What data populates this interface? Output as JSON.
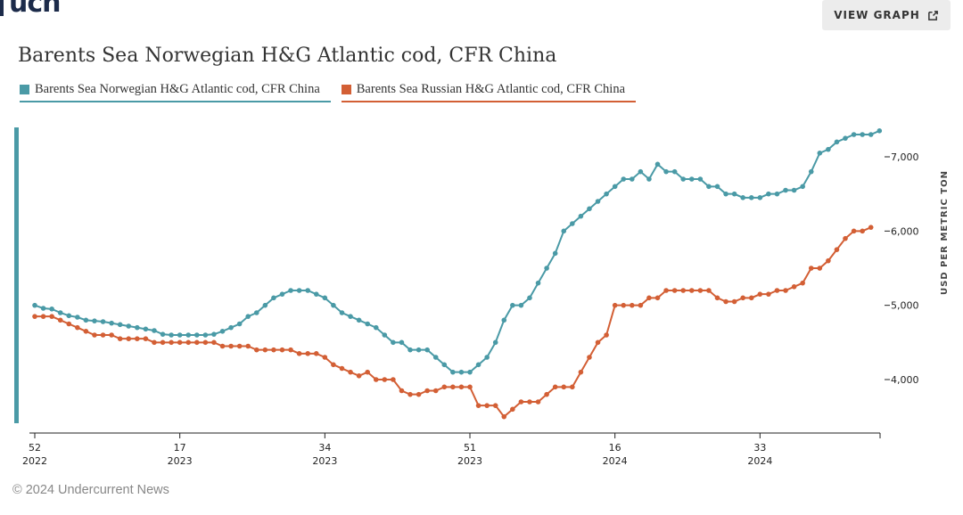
{
  "logo": {
    "text": "ucn"
  },
  "header": {
    "view_graph_label": "VIEW GRAPH"
  },
  "title": "Barents Sea Norwegian H&G Atlantic cod, CFR China",
  "legend": [
    {
      "label": "Barents Sea Norwegian H&G Atlantic cod, CFR China",
      "color": "#4a9aa6"
    },
    {
      "label": "Barents Sea Russian H&G Atlantic cod, CFR China",
      "color": "#d35f35"
    }
  ],
  "footer": {
    "copyright": "© 2024 Undercurrent News"
  },
  "chart_data": {
    "type": "line",
    "title": "Barents Sea Norwegian H&G Atlantic cod, CFR China",
    "ylabel": "USD PER METRIC TON",
    "xlabel": "",
    "ylim": [
      3300,
      7400
    ],
    "y_ticks": [
      4000,
      5000,
      6000,
      7000
    ],
    "y_tick_labels": [
      "4,000",
      "5,000",
      "6,000",
      "7,000"
    ],
    "x_range_weeks": [
      0,
      95
    ],
    "x_ticks": [
      {
        "week_index": 0,
        "week": "52",
        "year": "2022"
      },
      {
        "week_index": 17,
        "week": "17",
        "year": "2023"
      },
      {
        "week_index": 34,
        "week": "34",
        "year": "2023"
      },
      {
        "week_index": 51,
        "week": "51",
        "year": "2023"
      },
      {
        "week_index": 68,
        "week": "16",
        "year": "2024"
      },
      {
        "week_index": 85,
        "week": "33",
        "year": "2024"
      }
    ],
    "series": [
      {
        "name": "Barents Sea Norwegian H&G Atlantic cod, CFR China",
        "color": "#4a9aa6",
        "points": [
          [
            0,
            5000
          ],
          [
            1,
            4960
          ],
          [
            2,
            4950
          ],
          [
            3,
            4900
          ],
          [
            4,
            4860
          ],
          [
            5,
            4840
          ],
          [
            6,
            4800
          ],
          [
            7,
            4790
          ],
          [
            8,
            4780
          ],
          [
            9,
            4760
          ],
          [
            10,
            4740
          ],
          [
            11,
            4720
          ],
          [
            12,
            4700
          ],
          [
            13,
            4680
          ],
          [
            14,
            4660
          ],
          [
            15,
            4610
          ],
          [
            16,
            4600
          ],
          [
            17,
            4600
          ],
          [
            18,
            4600
          ],
          [
            19,
            4600
          ],
          [
            20,
            4600
          ],
          [
            21,
            4610
          ],
          [
            22,
            4650
          ],
          [
            23,
            4700
          ],
          [
            24,
            4750
          ],
          [
            25,
            4850
          ],
          [
            26,
            4900
          ],
          [
            27,
            5000
          ],
          [
            28,
            5100
          ],
          [
            29,
            5150
          ],
          [
            30,
            5200
          ],
          [
            31,
            5200
          ],
          [
            32,
            5200
          ],
          [
            33,
            5150
          ],
          [
            34,
            5100
          ],
          [
            35,
            5000
          ],
          [
            36,
            4900
          ],
          [
            37,
            4850
          ],
          [
            38,
            4800
          ],
          [
            39,
            4750
          ],
          [
            40,
            4700
          ],
          [
            41,
            4600
          ],
          [
            42,
            4500
          ],
          [
            43,
            4500
          ],
          [
            44,
            4400
          ],
          [
            45,
            4400
          ],
          [
            46,
            4400
          ],
          [
            47,
            4300
          ],
          [
            48,
            4200
          ],
          [
            49,
            4100
          ],
          [
            50,
            4100
          ],
          [
            51,
            4100
          ],
          [
            52,
            4200
          ],
          [
            53,
            4300
          ],
          [
            54,
            4500
          ],
          [
            55,
            4800
          ],
          [
            56,
            5000
          ],
          [
            57,
            5000
          ],
          [
            58,
            5100
          ],
          [
            59,
            5300
          ],
          [
            60,
            5500
          ],
          [
            61,
            5700
          ],
          [
            62,
            6000
          ],
          [
            63,
            6100
          ],
          [
            64,
            6200
          ],
          [
            65,
            6300
          ],
          [
            66,
            6400
          ],
          [
            67,
            6500
          ],
          [
            68,
            6600
          ],
          [
            69,
            6700
          ],
          [
            70,
            6700
          ],
          [
            71,
            6800
          ],
          [
            72,
            6700
          ],
          [
            73,
            6900
          ],
          [
            74,
            6800
          ],
          [
            75,
            6800
          ],
          [
            76,
            6700
          ],
          [
            77,
            6700
          ],
          [
            78,
            6700
          ],
          [
            79,
            6600
          ],
          [
            80,
            6600
          ],
          [
            81,
            6500
          ],
          [
            82,
            6500
          ],
          [
            83,
            6450
          ],
          [
            84,
            6450
          ],
          [
            85,
            6450
          ],
          [
            86,
            6500
          ],
          [
            87,
            6500
          ],
          [
            88,
            6550
          ],
          [
            89,
            6550
          ],
          [
            90,
            6600
          ],
          [
            91,
            6800
          ],
          [
            92,
            7050
          ],
          [
            93,
            7100
          ],
          [
            94,
            7200
          ],
          [
            95,
            7250
          ],
          [
            96,
            7300
          ],
          [
            97,
            7300
          ],
          [
            98,
            7300
          ],
          [
            99,
            7350
          ]
        ]
      },
      {
        "name": "Barents Sea Russian H&G Atlantic cod, CFR China",
        "color": "#d35f35",
        "points": [
          [
            0,
            4850
          ],
          [
            1,
            4850
          ],
          [
            2,
            4850
          ],
          [
            3,
            4800
          ],
          [
            4,
            4750
          ],
          [
            5,
            4700
          ],
          [
            6,
            4650
          ],
          [
            7,
            4600
          ],
          [
            8,
            4600
          ],
          [
            9,
            4600
          ],
          [
            10,
            4550
          ],
          [
            11,
            4550
          ],
          [
            12,
            4550
          ],
          [
            13,
            4550
          ],
          [
            14,
            4500
          ],
          [
            15,
            4500
          ],
          [
            16,
            4500
          ],
          [
            17,
            4500
          ],
          [
            18,
            4500
          ],
          [
            19,
            4500
          ],
          [
            20,
            4500
          ],
          [
            21,
            4500
          ],
          [
            22,
            4450
          ],
          [
            23,
            4450
          ],
          [
            24,
            4450
          ],
          [
            25,
            4450
          ],
          [
            26,
            4400
          ],
          [
            27,
            4400
          ],
          [
            28,
            4400
          ],
          [
            29,
            4400
          ],
          [
            30,
            4400
          ],
          [
            31,
            4350
          ],
          [
            32,
            4350
          ],
          [
            33,
            4350
          ],
          [
            34,
            4300
          ],
          [
            35,
            4200
          ],
          [
            36,
            4150
          ],
          [
            37,
            4100
          ],
          [
            38,
            4050
          ],
          [
            39,
            4100
          ],
          [
            40,
            4000
          ],
          [
            41,
            4000
          ],
          [
            42,
            4000
          ],
          [
            43,
            3850
          ],
          [
            44,
            3800
          ],
          [
            45,
            3800
          ],
          [
            46,
            3850
          ],
          [
            47,
            3850
          ],
          [
            48,
            3900
          ],
          [
            49,
            3900
          ],
          [
            50,
            3900
          ],
          [
            51,
            3900
          ],
          [
            52,
            3650
          ],
          [
            53,
            3650
          ],
          [
            54,
            3650
          ],
          [
            55,
            3500
          ],
          [
            56,
            3600
          ],
          [
            57,
            3700
          ],
          [
            58,
            3700
          ],
          [
            59,
            3700
          ],
          [
            60,
            3800
          ],
          [
            61,
            3900
          ],
          [
            62,
            3900
          ],
          [
            63,
            3900
          ],
          [
            64,
            4100
          ],
          [
            65,
            4300
          ],
          [
            66,
            4500
          ],
          [
            67,
            4600
          ],
          [
            68,
            5000
          ],
          [
            69,
            5000
          ],
          [
            70,
            5000
          ],
          [
            71,
            5000
          ],
          [
            72,
            5100
          ],
          [
            73,
            5100
          ],
          [
            74,
            5200
          ],
          [
            75,
            5200
          ],
          [
            76,
            5200
          ],
          [
            77,
            5200
          ],
          [
            78,
            5200
          ],
          [
            79,
            5200
          ],
          [
            80,
            5100
          ],
          [
            81,
            5050
          ],
          [
            82,
            5050
          ],
          [
            83,
            5100
          ],
          [
            84,
            5100
          ],
          [
            85,
            5150
          ],
          [
            86,
            5150
          ],
          [
            87,
            5200
          ],
          [
            88,
            5200
          ],
          [
            89,
            5250
          ],
          [
            90,
            5300
          ],
          [
            91,
            5500
          ],
          [
            92,
            5500
          ],
          [
            93,
            5600
          ],
          [
            94,
            5750
          ],
          [
            95,
            5900
          ],
          [
            96,
            6000
          ],
          [
            97,
            6000
          ],
          [
            98,
            6050
          ]
        ]
      }
    ]
  }
}
